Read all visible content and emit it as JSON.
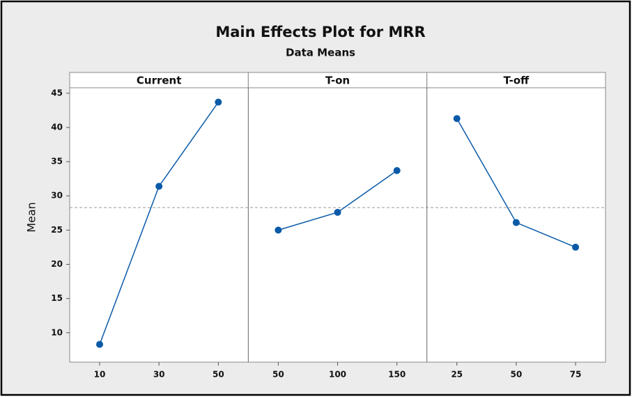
{
  "chart_data": {
    "type": "line",
    "title": "Main Effects Plot for MRR",
    "subtitle": "Data Means",
    "ylabel": "Mean",
    "color": "#0a5aa8",
    "reference_line": 28.3,
    "ylim": [
      5.7,
      45.8
    ],
    "yticks": [
      10,
      15,
      20,
      25,
      30,
      35,
      40,
      45
    ],
    "grid": false,
    "panels": [
      {
        "name": "Current",
        "categories": [
          "10",
          "30",
          "50"
        ],
        "values": [
          8.3,
          31.4,
          43.7
        ]
      },
      {
        "name": "T-on",
        "categories": [
          "50",
          "100",
          "150"
        ],
        "values": [
          25.0,
          27.6,
          33.7
        ]
      },
      {
        "name": "T-off",
        "categories": [
          "25",
          "50",
          "75"
        ],
        "values": [
          41.3,
          26.1,
          22.5
        ]
      }
    ]
  }
}
